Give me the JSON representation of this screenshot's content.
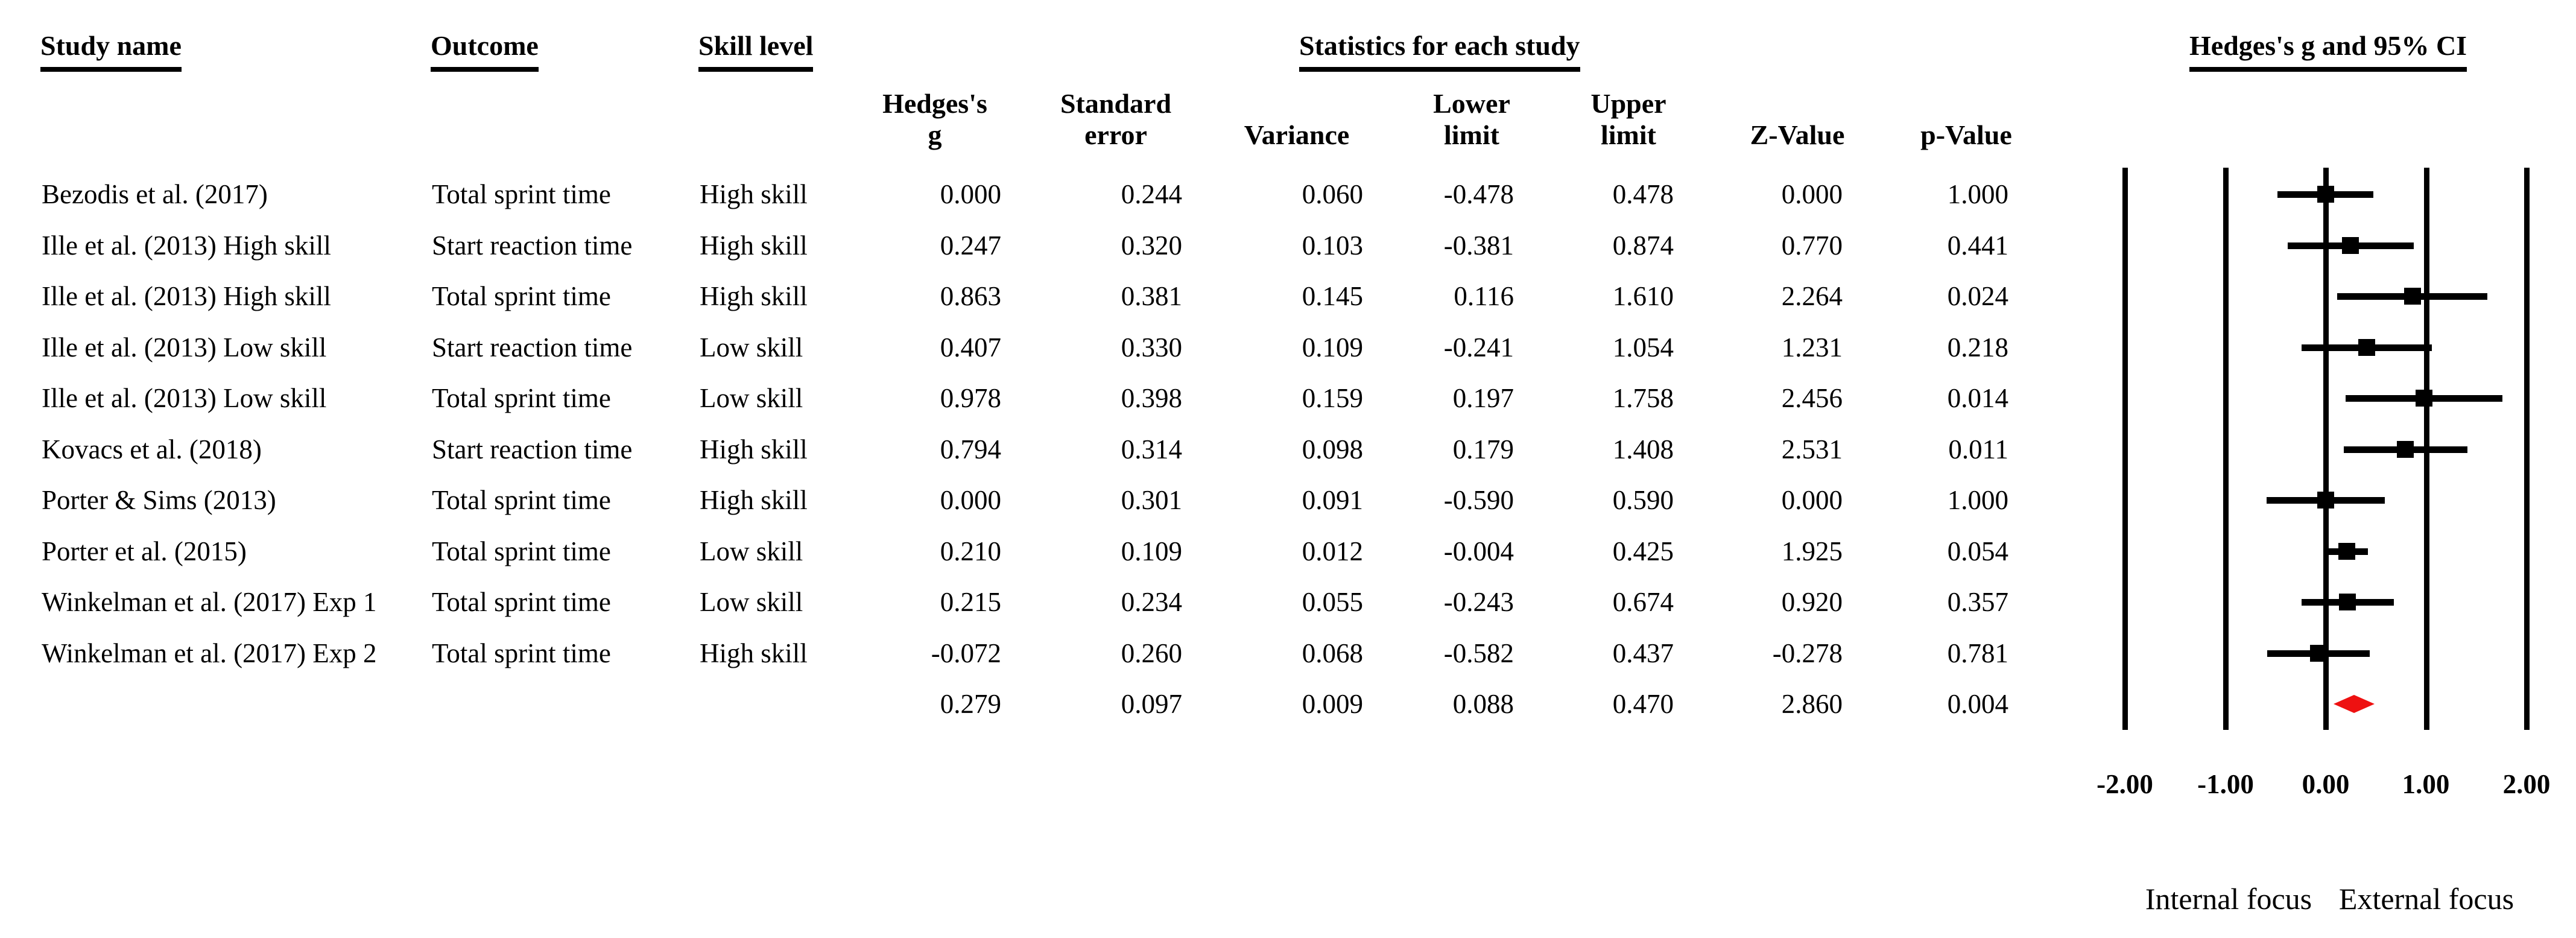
{
  "headers": {
    "study_name": "Study name",
    "outcome": "Outcome",
    "skill_level": "Skill level",
    "stats_group": "Statistics for each study",
    "ci_group": "Hedges's g and 95% CI"
  },
  "stat_columns": [
    "Hedges's\ng",
    "Standard\nerror",
    "Variance",
    "Lower\nlimit",
    "Upper\nlimit",
    "Z-Value",
    "p-Value"
  ],
  "chart_data": {
    "type": "scatter",
    "variant": "forest-plot",
    "title": "Hedges's g and 95% CI",
    "effect_measure": "Hedges's g",
    "legend_position": "none",
    "grid": "vertical-reference-lines",
    "x_axis": {
      "range": [
        -2,
        2
      ],
      "tick_values": [
        -2,
        -1,
        0,
        1,
        2
      ],
      "tick_labels": [
        "-2.00",
        "-1.00",
        "0.00",
        "1.00",
        "2.00"
      ]
    },
    "direction_labels": {
      "left": "Internal focus",
      "right": "External focus"
    },
    "study_marker_color": "#000000",
    "summary_marker_color": "#ee1111",
    "studies": [
      {
        "name": "Bezodis et al. (2017)",
        "outcome": "Total sprint time",
        "skill": "High skill",
        "hedges_g": 0.0,
        "standard_error": 0.244,
        "variance": 0.06,
        "lower_limit": -0.478,
        "upper_limit": 0.478,
        "z_value": 0.0,
        "p_value": 1.0
      },
      {
        "name": "Ille et al. (2013) High skill",
        "outcome": "Start reaction time",
        "skill": "High skill",
        "hedges_g": 0.247,
        "standard_error": 0.32,
        "variance": 0.103,
        "lower_limit": -0.381,
        "upper_limit": 0.874,
        "z_value": 0.77,
        "p_value": 0.441
      },
      {
        "name": "Ille et al. (2013) High skill",
        "outcome": "Total sprint time",
        "skill": "High skill",
        "hedges_g": 0.863,
        "standard_error": 0.381,
        "variance": 0.145,
        "lower_limit": 0.116,
        "upper_limit": 1.61,
        "z_value": 2.264,
        "p_value": 0.024
      },
      {
        "name": "Ille et al. (2013) Low skill",
        "outcome": "Start reaction time",
        "skill": "Low skill",
        "hedges_g": 0.407,
        "standard_error": 0.33,
        "variance": 0.109,
        "lower_limit": -0.241,
        "upper_limit": 1.054,
        "z_value": 1.231,
        "p_value": 0.218
      },
      {
        "name": "Ille et al. (2013) Low skill",
        "outcome": "Total sprint time",
        "skill": "Low skill",
        "hedges_g": 0.978,
        "standard_error": 0.398,
        "variance": 0.159,
        "lower_limit": 0.197,
        "upper_limit": 1.758,
        "z_value": 2.456,
        "p_value": 0.014
      },
      {
        "name": "Kovacs et al. (2018)",
        "outcome": "Start reaction time",
        "skill": "High skill",
        "hedges_g": 0.794,
        "standard_error": 0.314,
        "variance": 0.098,
        "lower_limit": 0.179,
        "upper_limit": 1.408,
        "z_value": 2.531,
        "p_value": 0.011
      },
      {
        "name": "Porter & Sims (2013)",
        "outcome": "Total sprint time",
        "skill": "High skill",
        "hedges_g": 0.0,
        "standard_error": 0.301,
        "variance": 0.091,
        "lower_limit": -0.59,
        "upper_limit": 0.59,
        "z_value": 0.0,
        "p_value": 1.0
      },
      {
        "name": "Porter et al. (2015)",
        "outcome": "Total sprint time",
        "skill": "Low skill",
        "hedges_g": 0.21,
        "standard_error": 0.109,
        "variance": 0.012,
        "lower_limit": -0.004,
        "upper_limit": 0.425,
        "z_value": 1.925,
        "p_value": 0.054
      },
      {
        "name": "Winkelman et al. (2017) Exp 1",
        "outcome": "Total sprint time",
        "skill": "Low skill",
        "hedges_g": 0.215,
        "standard_error": 0.234,
        "variance": 0.055,
        "lower_limit": -0.243,
        "upper_limit": 0.674,
        "z_value": 0.92,
        "p_value": 0.357
      },
      {
        "name": "Winkelman et al. (2017) Exp 2",
        "outcome": "Total sprint time",
        "skill": "High skill",
        "hedges_g": -0.072,
        "standard_error": 0.26,
        "variance": 0.068,
        "lower_limit": -0.582,
        "upper_limit": 0.437,
        "z_value": -0.278,
        "p_value": 0.781
      }
    ],
    "overall": {
      "hedges_g": 0.279,
      "standard_error": 0.097,
      "variance": 0.009,
      "lower_limit": 0.088,
      "upper_limit": 0.47,
      "z_value": 2.86,
      "p_value": 0.004
    }
  }
}
